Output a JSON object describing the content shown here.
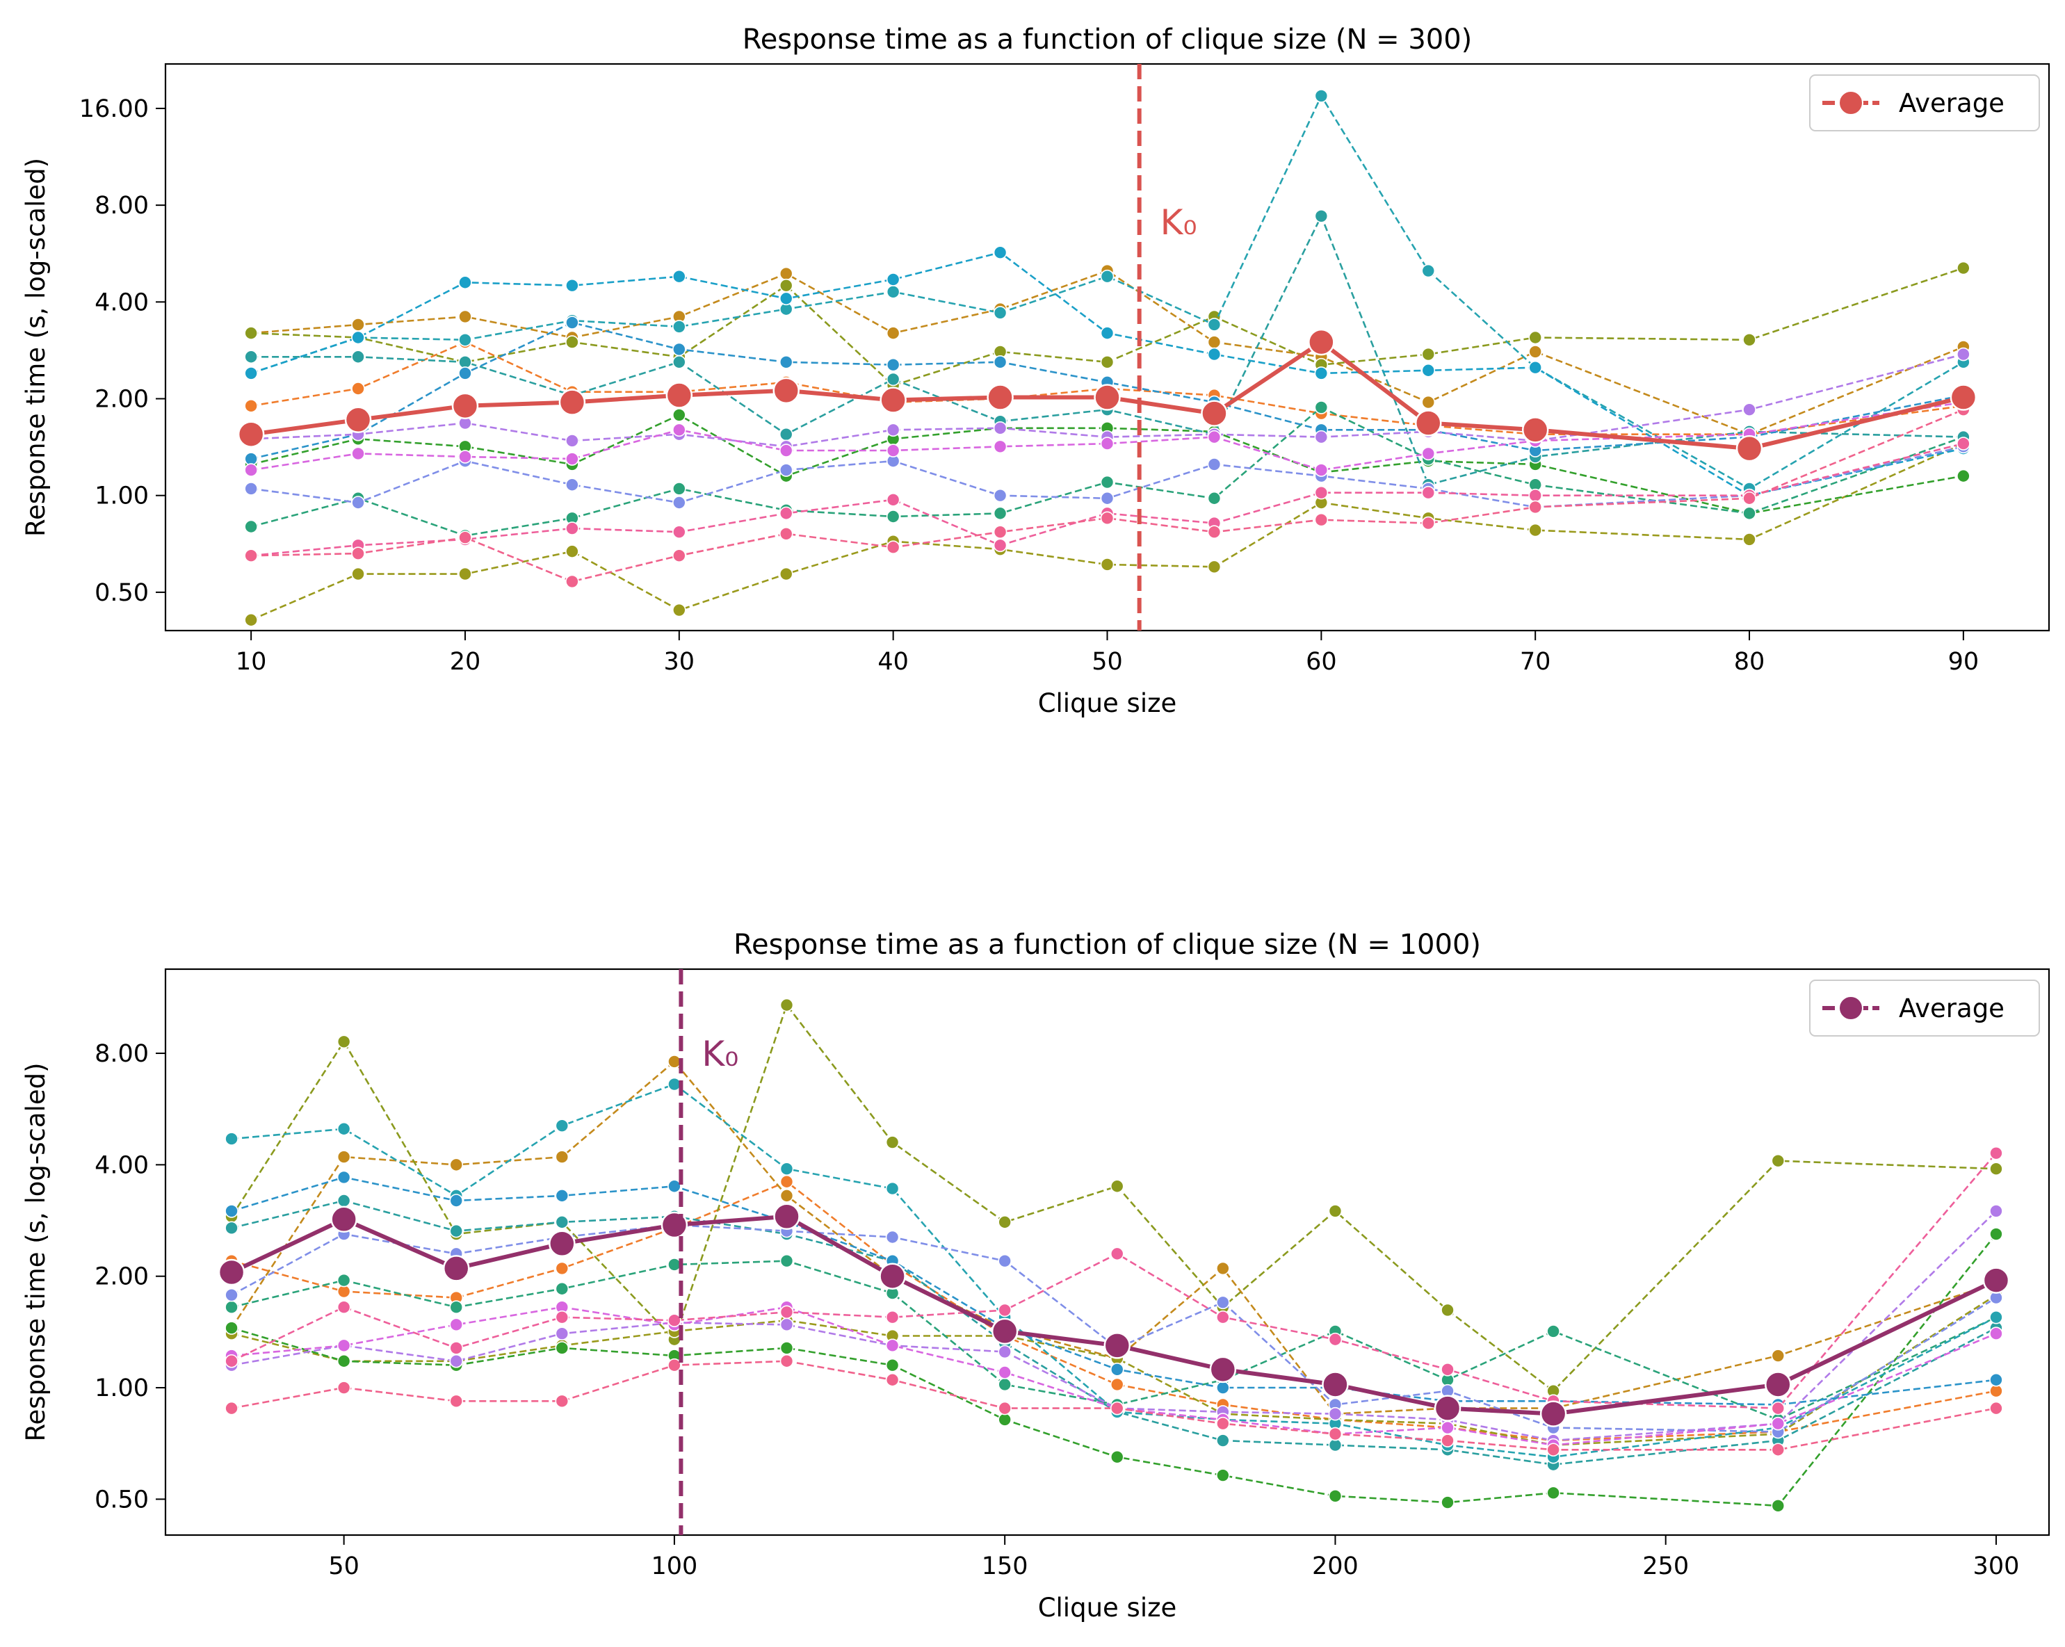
{
  "chart_data": [
    {
      "type": "line",
      "title": "Response time as a function of clique size (N = 300)",
      "xlabel": "Clique size",
      "ylabel": "Response time (s, log-scaled)",
      "yscale": "log2",
      "xlim": [
        6,
        94
      ],
      "ylim": [
        0.38,
        22
      ],
      "x": [
        10,
        15,
        20,
        25,
        30,
        35,
        40,
        45,
        50,
        55,
        60,
        65,
        70,
        80,
        90
      ],
      "xticks": [
        "10",
        "20",
        "30",
        "40",
        "50",
        "60",
        "70",
        "80",
        "90"
      ],
      "xtick_values": [
        10,
        20,
        30,
        40,
        50,
        60,
        70,
        80,
        90
      ],
      "yticks": [
        "0.50",
        "1.00",
        "2.00",
        "4.00",
        "8.00",
        "16.00"
      ],
      "ytick_values": [
        0.5,
        1,
        2,
        4,
        8,
        16
      ],
      "k0": 51.5,
      "k0_label": "K₀",
      "k0_color": "#d9534f",
      "legend": {
        "label": "Average",
        "position": "upper right"
      },
      "average": {
        "name": "Average",
        "color": "#d9534f",
        "values": [
          1.55,
          1.72,
          1.9,
          1.95,
          2.05,
          2.12,
          1.98,
          2.02,
          2.02,
          1.8,
          3.0,
          1.68,
          1.6,
          1.4,
          2.02
        ]
      },
      "series": [
        {
          "color": "#f07c2b",
          "values": [
            1.9,
            2.15,
            3.0,
            2.1,
            2.1,
            2.25,
            1.95,
            2.0,
            2.15,
            2.05,
            1.8,
            1.65,
            1.55,
            1.55,
            1.9
          ]
        },
        {
          "color": "#c48a1c",
          "values": [
            3.2,
            3.4,
            3.6,
            3.1,
            3.6,
            4.9,
            3.2,
            3.8,
            5.0,
            3.0,
            2.7,
            1.95,
            2.8,
            1.55,
            2.9
          ]
        },
        {
          "color": "#8b9a1e",
          "values": [
            3.2,
            3.1,
            2.6,
            3.0,
            2.7,
            4.5,
            2.2,
            2.8,
            2.6,
            3.6,
            2.55,
            2.75,
            3.1,
            3.05,
            5.1
          ]
        },
        {
          "color": "#9a9a1c",
          "values": [
            0.41,
            0.57,
            0.57,
            0.67,
            0.44,
            0.57,
            0.72,
            0.68,
            0.61,
            0.6,
            0.95,
            0.85,
            0.78,
            0.73,
            1.45
          ]
        },
        {
          "color": "#33a02c",
          "values": [
            1.25,
            1.5,
            1.42,
            1.25,
            1.78,
            1.15,
            1.5,
            1.62,
            1.62,
            1.58,
            1.18,
            1.28,
            1.25,
            0.88,
            1.15
          ]
        },
        {
          "color": "#2aa37a",
          "values": [
            0.8,
            0.98,
            0.75,
            0.85,
            1.05,
            0.9,
            0.86,
            0.88,
            1.1,
            0.98,
            1.88,
            1.3,
            1.08,
            0.88,
            1.52
          ]
        },
        {
          "color": "#2a9f9f",
          "values": [
            2.7,
            2.7,
            2.6,
            2.05,
            2.6,
            1.55,
            2.3,
            1.7,
            1.85,
            1.55,
            7.4,
            1.08,
            1.32,
            1.58,
            1.52
          ]
        },
        {
          "color": "#26a3b0",
          "values": [
            2.4,
            3.1,
            3.05,
            3.5,
            3.35,
            3.8,
            4.3,
            3.7,
            4.8,
            3.4,
            17.5,
            5.0,
            2.5,
            1.05,
            2.6
          ]
        },
        {
          "color": "#2b93c9",
          "values": [
            1.3,
            1.55,
            2.4,
            3.45,
            2.85,
            2.6,
            2.55,
            2.6,
            2.25,
            1.95,
            1.6,
            1.6,
            1.38,
            1.52,
            2.05
          ]
        },
        {
          "color": "#1aa0c8",
          "values": [
            2.4,
            3.1,
            4.6,
            4.5,
            4.8,
            4.1,
            4.7,
            5.7,
            3.2,
            2.75,
            2.4,
            2.45,
            2.5,
            1.0,
            1.4
          ]
        },
        {
          "color": "#7f8ee8",
          "values": [
            1.05,
            0.95,
            1.28,
            1.08,
            0.95,
            1.2,
            1.28,
            1.0,
            0.98,
            1.25,
            1.15,
            1.05,
            0.92,
            1.0,
            1.42
          ]
        },
        {
          "color": "#b07ae8",
          "values": [
            1.5,
            1.55,
            1.68,
            1.48,
            1.55,
            1.42,
            1.6,
            1.62,
            1.52,
            1.55,
            1.52,
            1.58,
            1.48,
            1.85,
            2.75
          ]
        },
        {
          "color": "#d866e0",
          "values": [
            1.2,
            1.35,
            1.32,
            1.3,
            1.6,
            1.38,
            1.38,
            1.42,
            1.45,
            1.52,
            1.2,
            1.35,
            1.48,
            1.55,
            1.95
          ]
        },
        {
          "color": "#ee5f9a",
          "values": [
            0.65,
            0.7,
            0.73,
            0.79,
            0.77,
            0.88,
            0.97,
            0.7,
            0.88,
            0.82,
            1.02,
            1.02,
            1.0,
            1.0,
            1.45
          ]
        },
        {
          "color": "#f0628c",
          "values": [
            0.65,
            0.66,
            0.74,
            0.54,
            0.65,
            0.76,
            0.69,
            0.77,
            0.85,
            0.77,
            0.84,
            0.82,
            0.92,
            0.98,
            1.85
          ]
        }
      ]
    },
    {
      "type": "line",
      "title": "Response time as a function of clique size (N = 1000)",
      "xlabel": "Clique size",
      "ylabel": "Response time (s, log-scaled)",
      "yscale": "log2",
      "xlim": [
        23,
        308
      ],
      "ylim": [
        0.4,
        13.5
      ],
      "x": [
        33,
        50,
        67,
        83,
        100,
        117,
        133,
        150,
        167,
        183,
        200,
        217,
        233,
        267,
        300
      ],
      "xticks": [
        "50",
        "100",
        "150",
        "200",
        "250",
        "300"
      ],
      "xtick_values": [
        50,
        100,
        150,
        200,
        250,
        300
      ],
      "yticks": [
        "0.50",
        "1.00",
        "2.00",
        "4.00",
        "8.00"
      ],
      "ytick_values": [
        0.5,
        1,
        2,
        4,
        8
      ],
      "k0": 101,
      "k0_label": "K₀",
      "k0_color": "#93306a",
      "legend": {
        "label": "Average",
        "position": "upper right"
      },
      "average": {
        "name": "Average",
        "color": "#93306a",
        "values": [
          2.05,
          2.85,
          2.1,
          2.45,
          2.75,
          2.9,
          2.0,
          1.42,
          1.3,
          1.12,
          1.02,
          0.88,
          0.85,
          1.02,
          1.95
        ]
      },
      "series": [
        {
          "color": "#f07c2b",
          "values": [
            2.2,
            1.82,
            1.75,
            2.1,
            2.7,
            3.6,
            2.15,
            1.38,
            1.02,
            0.9,
            0.82,
            0.78,
            0.72,
            0.76,
            0.98
          ]
        },
        {
          "color": "#c48a1c",
          "values": [
            1.45,
            4.2,
            4.0,
            4.2,
            7.6,
            3.3,
            2.0,
            1.45,
            1.2,
            2.1,
            0.85,
            0.88,
            0.88,
            1.22,
            1.92
          ]
        },
        {
          "color": "#8b9a1e",
          "values": [
            2.9,
            8.6,
            2.6,
            2.8,
            1.35,
            10.8,
            4.6,
            2.8,
            3.5,
            1.65,
            3.0,
            1.62,
            0.98,
            4.1,
            3.9
          ]
        },
        {
          "color": "#9a9a1c",
          "values": [
            1.4,
            1.18,
            1.18,
            1.3,
            1.42,
            1.52,
            1.38,
            1.38,
            1.2,
            0.85,
            0.82,
            0.8,
            0.7,
            0.75,
            1.78
          ]
        },
        {
          "color": "#33a02c",
          "values": [
            1.45,
            1.18,
            1.15,
            1.28,
            1.22,
            1.28,
            1.15,
            0.82,
            0.65,
            0.58,
            0.51,
            0.49,
            0.52,
            0.48,
            2.6
          ]
        },
        {
          "color": "#2aa37a",
          "values": [
            1.65,
            1.95,
            1.65,
            1.85,
            2.15,
            2.2,
            1.8,
            1.02,
            0.9,
            1.05,
            1.42,
            1.05,
            1.42,
            0.82,
            1.55
          ]
        },
        {
          "color": "#2a9f9f",
          "values": [
            2.7,
            3.2,
            2.65,
            2.8,
            2.9,
            2.6,
            2.2,
            1.32,
            0.86,
            0.72,
            0.7,
            0.68,
            0.62,
            0.72,
            1.45
          ]
        },
        {
          "color": "#26a3b0",
          "values": [
            4.7,
            5.0,
            3.3,
            5.1,
            6.6,
            3.9,
            3.45,
            1.55,
            0.86,
            0.82,
            0.8,
            0.7,
            0.65,
            0.78,
            1.55
          ]
        },
        {
          "color": "#2b93c9",
          "values": [
            3.0,
            3.7,
            3.2,
            3.3,
            3.5,
            2.8,
            2.2,
            1.45,
            1.12,
            1.0,
            1.0,
            0.92,
            0.92,
            0.9,
            1.05
          ]
        },
        {
          "color": "#7f8ee8",
          "values": [
            1.78,
            2.6,
            2.3,
            2.55,
            2.75,
            2.65,
            2.55,
            2.2,
            1.28,
            1.7,
            0.9,
            0.98,
            0.78,
            0.76,
            1.75
          ]
        },
        {
          "color": "#b07ae8",
          "values": [
            1.15,
            1.3,
            1.18,
            1.4,
            1.5,
            1.48,
            1.3,
            1.25,
            0.88,
            0.86,
            0.85,
            0.82,
            0.72,
            0.8,
            3.0
          ]
        },
        {
          "color": "#d866e0",
          "values": [
            1.22,
            1.3,
            1.48,
            1.65,
            1.48,
            1.65,
            1.3,
            1.1,
            0.88,
            0.82,
            0.75,
            0.78,
            0.7,
            0.8,
            1.4
          ]
        },
        {
          "color": "#ee5f9a",
          "values": [
            1.18,
            1.65,
            1.28,
            1.55,
            1.52,
            1.6,
            1.55,
            1.62,
            2.3,
            1.55,
            1.35,
            1.12,
            0.92,
            0.88,
            4.3
          ]
        },
        {
          "color": "#f0628c",
          "values": [
            0.88,
            1.0,
            0.92,
            0.92,
            1.15,
            1.18,
            1.05,
            0.88,
            0.88,
            0.8,
            0.75,
            0.72,
            0.68,
            0.68,
            0.88
          ]
        }
      ]
    }
  ]
}
